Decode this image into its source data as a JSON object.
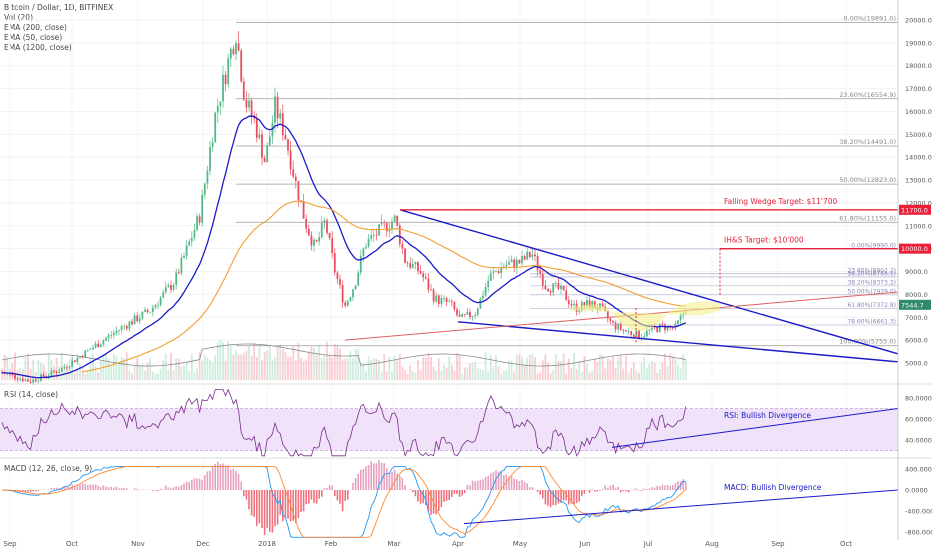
{
  "header": {
    "symbol": "Bitcoin / Dollar, 1D, BITFINEX",
    "indicators": [
      "Vol (20)",
      "EMA (200, close)",
      "EMA (50, close)",
      "EMA (1200, close)"
    ]
  },
  "panes": {
    "rsi_label": "RSI (14, close)",
    "macd_label": "MACD (12, 26, close, 9)"
  },
  "annotations": {
    "wedge_target": "Falling Wedge Target: $11'700",
    "ihs_target": "IH&S Target: $10'000",
    "rsi_div": "RSI: Bullish Divergence",
    "macd_div": "MACD: Bullish Divergence",
    "wedge_tag": "11700.0",
    "ihs_tag": "10000.0",
    "price_tag": "7544.7"
  },
  "colors": {
    "up": "#53b987",
    "down": "#eb4d5c",
    "ema50": "#1a1ac7",
    "ema200": "#f0a030",
    "ema1200": "#8a8a8a",
    "target": "#e8203a",
    "wedge": "#1a1ac7",
    "rsi": "#7a2b8c",
    "macd": "#2196f3",
    "signal": "#ff8a30",
    "hist_up": "#e08ab0"
  },
  "chart_data": {
    "type": "candlestick",
    "price_axis_ticks": [
      "20000.0",
      "19000.0",
      "18000.0",
      "17000.0",
      "16000.0",
      "15000.0",
      "14000.0",
      "13000.0",
      "12000.0",
      "11000.0",
      "10000.0",
      "9000.0",
      "8000.0",
      "7000.0",
      "6000.0",
      "5000.0"
    ],
    "rsi_axis_ticks": [
      "80.0000",
      "60.0000",
      "40.0000"
    ],
    "macd_axis_ticks": [
      "400.0000",
      "0.0000",
      "-400.0000",
      "-800.0000"
    ],
    "time_labels": [
      "Sep",
      "Oct",
      "Nov",
      "Dec",
      "2018",
      "Feb",
      "Mar",
      "Apr",
      "May",
      "Jun",
      "Jul",
      "Aug",
      "Sep",
      "Oct"
    ],
    "fib_levels_top": [
      {
        "label": "0.00%(19891.0)",
        "price": 19891
      },
      {
        "label": "23.60%(16554.9)",
        "price": 16554.9
      },
      {
        "label": "38.20%(14491.0)",
        "price": 14491
      },
      {
        "label": "50.00%(12823.0)",
        "price": 12823
      },
      {
        "label": "61.80%(11155.0)",
        "price": 11155
      },
      {
        "label": "100.00%(5755.0)",
        "price": 5755
      }
    ],
    "fib_levels_small": [
      {
        "label": "0.00%(9990.0)",
        "price": 9990
      },
      {
        "label": "23.60%(8902.2)",
        "price": 8902
      },
      {
        "label": "38.20%(8765.1)",
        "price": 8765
      },
      {
        "label": "38.20%(8373.2)",
        "price": 8373
      },
      {
        "label": "50.00%(7979.0)",
        "price": 7979
      },
      {
        "label": "61.80%(7372.8)",
        "price": 7372.8
      },
      {
        "label": "78.60%(6661.3)",
        "price": 6661.3
      }
    ],
    "targets": [
      11700,
      10000
    ],
    "last_price": 7544.7
  }
}
